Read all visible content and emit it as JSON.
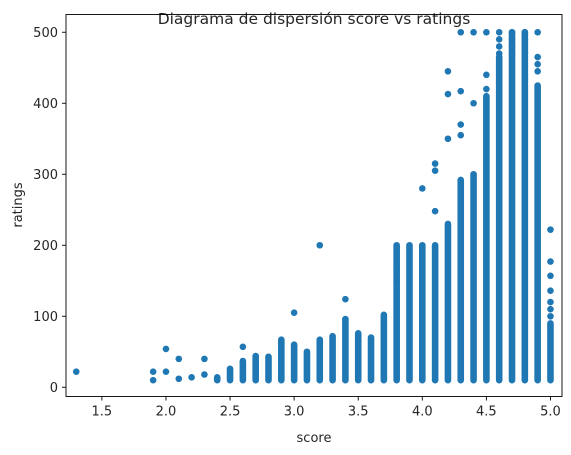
{
  "chart_data": {
    "type": "scatter",
    "title": "Diagrama de dispersión score vs ratings",
    "xlabel": "score",
    "ylabel": "ratings",
    "xlim": [
      1.22,
      5.09
    ],
    "ylim": [
      -13,
      525
    ],
    "xticks": [
      1.5,
      2.0,
      2.5,
      3.0,
      3.5,
      4.0,
      4.5,
      5.0
    ],
    "xtick_labels": [
      "1.5",
      "2.0",
      "2.5",
      "3.0",
      "3.5",
      "4.0",
      "4.5",
      "5.0"
    ],
    "yticks": [
      0,
      100,
      200,
      300,
      400,
      500
    ],
    "ytick_labels": [
      "0",
      "100",
      "200",
      "300",
      "400",
      "500"
    ],
    "grid": false,
    "color": "#1f77b4",
    "points": [
      [
        1.3,
        22
      ],
      [
        1.9,
        10
      ],
      [
        1.9,
        22
      ],
      [
        2.0,
        22
      ],
      [
        2.0,
        54
      ],
      [
        2.1,
        12
      ],
      [
        2.1,
        40
      ],
      [
        2.2,
        14
      ],
      [
        2.3,
        18
      ],
      [
        2.3,
        40
      ],
      [
        2.6,
        57
      ],
      [
        3.0,
        105
      ],
      [
        3.2,
        200
      ],
      [
        3.4,
        124
      ],
      [
        3.8,
        180
      ],
      [
        3.8,
        170
      ],
      [
        3.8,
        150
      ],
      [
        4.0,
        280
      ],
      [
        4.1,
        315
      ],
      [
        4.1,
        305
      ],
      [
        4.1,
        248
      ],
      [
        4.2,
        445
      ],
      [
        4.2,
        413
      ],
      [
        4.2,
        350
      ],
      [
        4.3,
        500
      ],
      [
        4.3,
        417
      ],
      [
        4.3,
        370
      ],
      [
        4.3,
        355
      ],
      [
        4.4,
        500
      ],
      [
        4.4,
        400
      ],
      [
        4.5,
        500
      ],
      [
        4.5,
        440
      ],
      [
        4.5,
        420
      ],
      [
        4.6,
        500
      ],
      [
        4.6,
        490
      ],
      [
        4.6,
        480
      ],
      [
        4.6,
        470
      ],
      [
        4.7,
        500
      ],
      [
        4.7,
        490
      ],
      [
        4.7,
        480
      ],
      [
        4.7,
        470
      ],
      [
        4.8,
        500
      ],
      [
        4.8,
        490
      ],
      [
        4.8,
        480
      ],
      [
        4.8,
        470
      ],
      [
        4.9,
        500
      ],
      [
        4.9,
        465
      ],
      [
        4.9,
        455
      ],
      [
        4.9,
        445
      ],
      [
        5.0,
        222
      ],
      [
        5.0,
        177
      ],
      [
        5.0,
        157
      ],
      [
        5.0,
        136
      ],
      [
        5.0,
        120
      ],
      [
        5.0,
        110
      ],
      [
        5.0,
        100
      ]
    ],
    "columns": [
      {
        "x": 2.4,
        "min": 10,
        "max": 14
      },
      {
        "x": 2.5,
        "min": 10,
        "max": 26
      },
      {
        "x": 2.6,
        "min": 10,
        "max": 37
      },
      {
        "x": 2.7,
        "min": 10,
        "max": 44
      },
      {
        "x": 2.8,
        "min": 10,
        "max": 43
      },
      {
        "x": 2.9,
        "min": 10,
        "max": 67
      },
      {
        "x": 3.0,
        "min": 10,
        "max": 60
      },
      {
        "x": 3.1,
        "min": 10,
        "max": 50
      },
      {
        "x": 3.2,
        "min": 10,
        "max": 67
      },
      {
        "x": 3.3,
        "min": 10,
        "max": 72
      },
      {
        "x": 3.4,
        "min": 10,
        "max": 96
      },
      {
        "x": 3.5,
        "min": 10,
        "max": 76
      },
      {
        "x": 3.6,
        "min": 10,
        "max": 70
      },
      {
        "x": 3.7,
        "min": 10,
        "max": 102
      },
      {
        "x": 3.8,
        "min": 10,
        "max": 200
      },
      {
        "x": 3.9,
        "min": 10,
        "max": 200
      },
      {
        "x": 4.0,
        "min": 10,
        "max": 200
      },
      {
        "x": 4.1,
        "min": 10,
        "max": 200
      },
      {
        "x": 4.2,
        "min": 10,
        "max": 230
      },
      {
        "x": 4.3,
        "min": 10,
        "max": 292
      },
      {
        "x": 4.4,
        "min": 10,
        "max": 300
      },
      {
        "x": 4.5,
        "min": 10,
        "max": 410
      },
      {
        "x": 4.6,
        "min": 10,
        "max": 465
      },
      {
        "x": 4.7,
        "min": 10,
        "max": 500
      },
      {
        "x": 4.8,
        "min": 10,
        "max": 500
      },
      {
        "x": 4.9,
        "min": 10,
        "max": 425
      },
      {
        "x": 5.0,
        "min": 10,
        "max": 90
      }
    ]
  }
}
